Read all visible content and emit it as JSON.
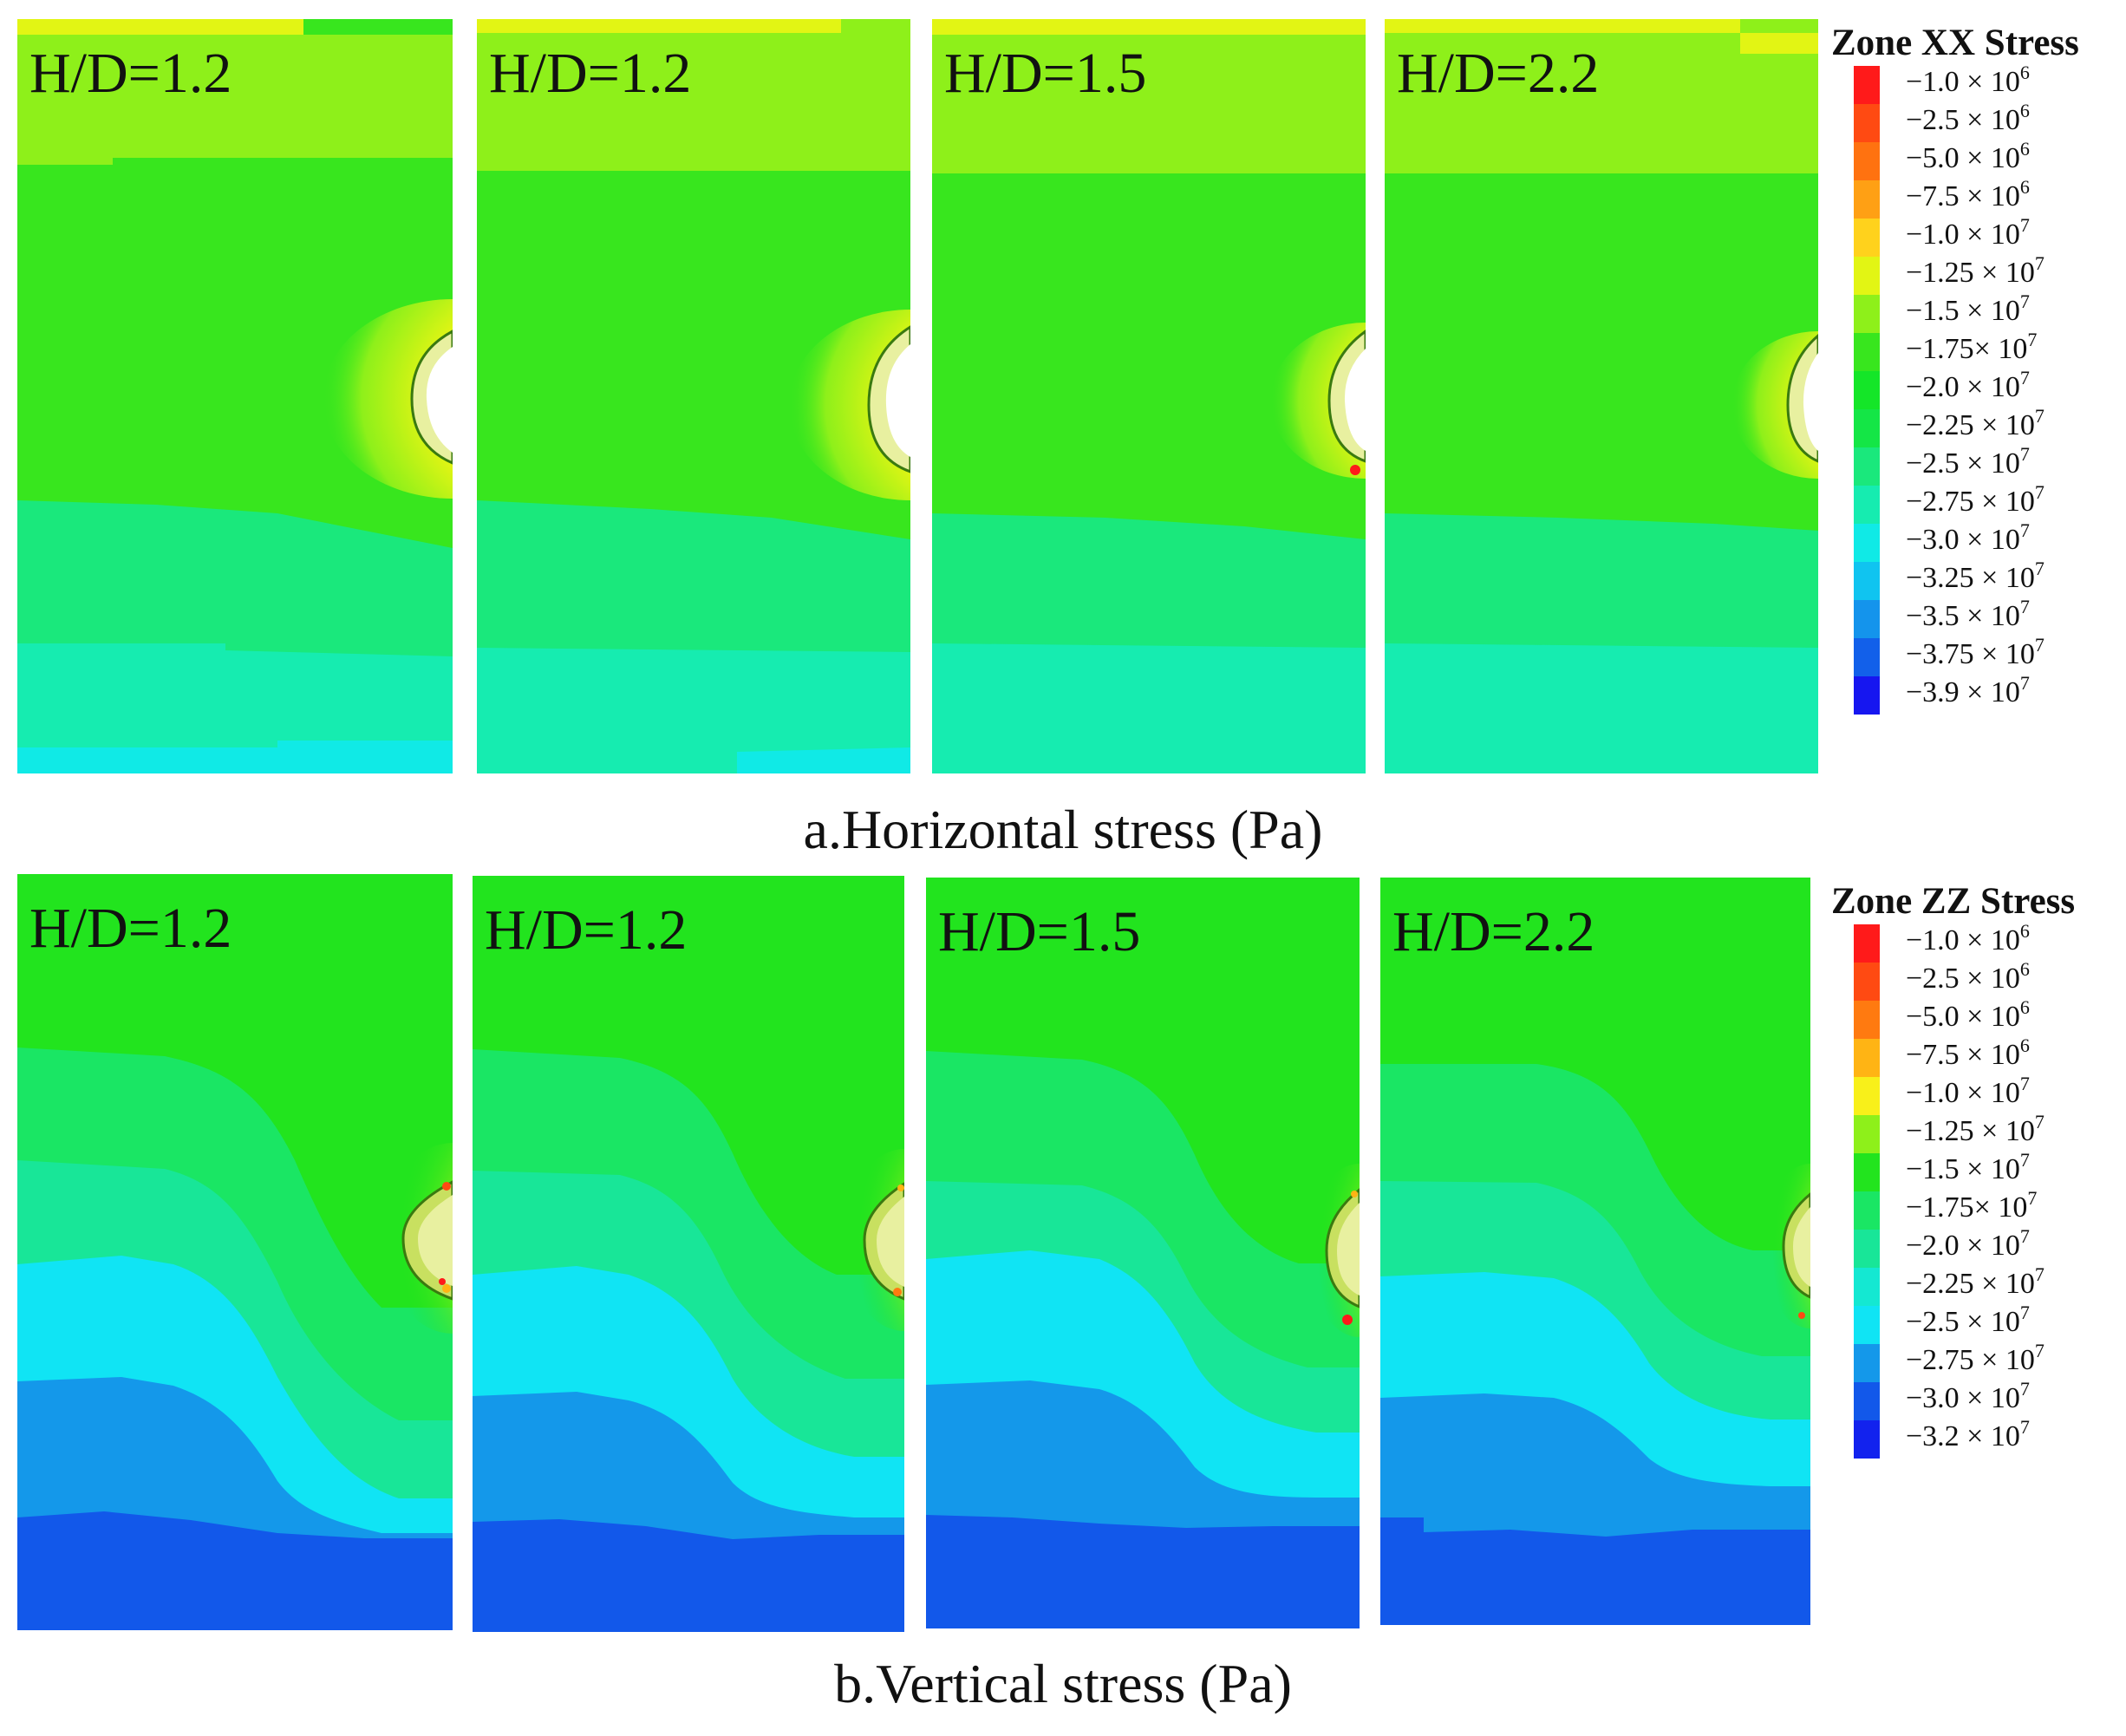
{
  "figure": {
    "horizontal": {
      "caption": "a.Horizontal stress (Pa)",
      "panel_labels": [
        "H/D=1.2",
        "H/D=1.2",
        "H/D=1.5",
        "H/D=2.2"
      ],
      "legend": {
        "title": "Zone XX Stress",
        "items": [
          {
            "mantissa": "−1.0 × 10",
            "exponent": "6",
            "color": "#ff1a1a"
          },
          {
            "mantissa": "−2.5 × 10",
            "exponent": "6",
            "color": "#ff4a12"
          },
          {
            "mantissa": "−5.0 × 10",
            "exponent": "6",
            "color": "#ff7210"
          },
          {
            "mantissa": "−7.5 × 10",
            "exponent": "6",
            "color": "#ffa014"
          },
          {
            "mantissa": "−1.0 × 10",
            "exponent": "7",
            "color": "#ffd21c"
          },
          {
            "mantissa": "−1.25 × 10",
            "exponent": "7",
            "color": "#e2f514"
          },
          {
            "mantissa": "−1.5 × 10",
            "exponent": "7",
            "color": "#8ef01a"
          },
          {
            "mantissa": "−1.75× 10",
            "exponent": "7",
            "color": "#38e61e"
          },
          {
            "mantissa": "−2.0 × 10",
            "exponent": "7",
            "color": "#14e628"
          },
          {
            "mantissa": "−2.25 × 10",
            "exponent": "7",
            "color": "#14e646"
          },
          {
            "mantissa": "−2.5 × 10",
            "exponent": "7",
            "color": "#1ae87c"
          },
          {
            "mantissa": "−2.75 × 10",
            "exponent": "7",
            "color": "#16ecb0"
          },
          {
            "mantissa": "−3.0 × 10",
            "exponent": "7",
            "color": "#10eae6"
          },
          {
            "mantissa": "−3.25 × 10",
            "exponent": "7",
            "color": "#10c4f0"
          },
          {
            "mantissa": "−3.5 × 10",
            "exponent": "7",
            "color": "#1494ec"
          },
          {
            "mantissa": "−3.75 × 10",
            "exponent": "7",
            "color": "#1260ea"
          },
          {
            "mantissa": "−3.9 × 10",
            "exponent": "7",
            "color": "#1616f0"
          }
        ]
      }
    },
    "vertical": {
      "caption": "b.Vertical stress (Pa)",
      "panel_labels": [
        "H/D=1.2",
        "H/D=1.2",
        "H/D=1.5",
        "H/D=2.2"
      ],
      "legend": {
        "title": "Zone ZZ Stress",
        "items": [
          {
            "mantissa": "−1.0 × 10",
            "exponent": "6",
            "color": "#ff1a1a"
          },
          {
            "mantissa": "−2.5 × 10",
            "exponent": "6",
            "color": "#ff4a12"
          },
          {
            "mantissa": "−5.0 × 10",
            "exponent": "6",
            "color": "#ff7a10"
          },
          {
            "mantissa": "−7.5 × 10",
            "exponent": "6",
            "color": "#ffb414"
          },
          {
            "mantissa": "−1.0 × 10",
            "exponent": "7",
            "color": "#f8f01a"
          },
          {
            "mantissa": "−1.25 × 10",
            "exponent": "7",
            "color": "#8ef01a"
          },
          {
            "mantissa": "−1.5 × 10",
            "exponent": "7",
            "color": "#22e41e"
          },
          {
            "mantissa": "−1.75× 10",
            "exponent": "7",
            "color": "#1ae664"
          },
          {
            "mantissa": "−2.0 × 10",
            "exponent": "7",
            "color": "#18e698"
          },
          {
            "mantissa": "−2.25 × 10",
            "exponent": "7",
            "color": "#14e8d2"
          },
          {
            "mantissa": "−2.5 × 10",
            "exponent": "7",
            "color": "#10e4f4"
          },
          {
            "mantissa": "−2.75 × 10",
            "exponent": "7",
            "color": "#1498ea"
          },
          {
            "mantissa": "−3.0 × 10",
            "exponent": "7",
            "color": "#1258ea"
          },
          {
            "mantissa": "−3.2 × 10",
            "exponent": "7",
            "color": "#1222ee"
          }
        ]
      }
    }
  }
}
